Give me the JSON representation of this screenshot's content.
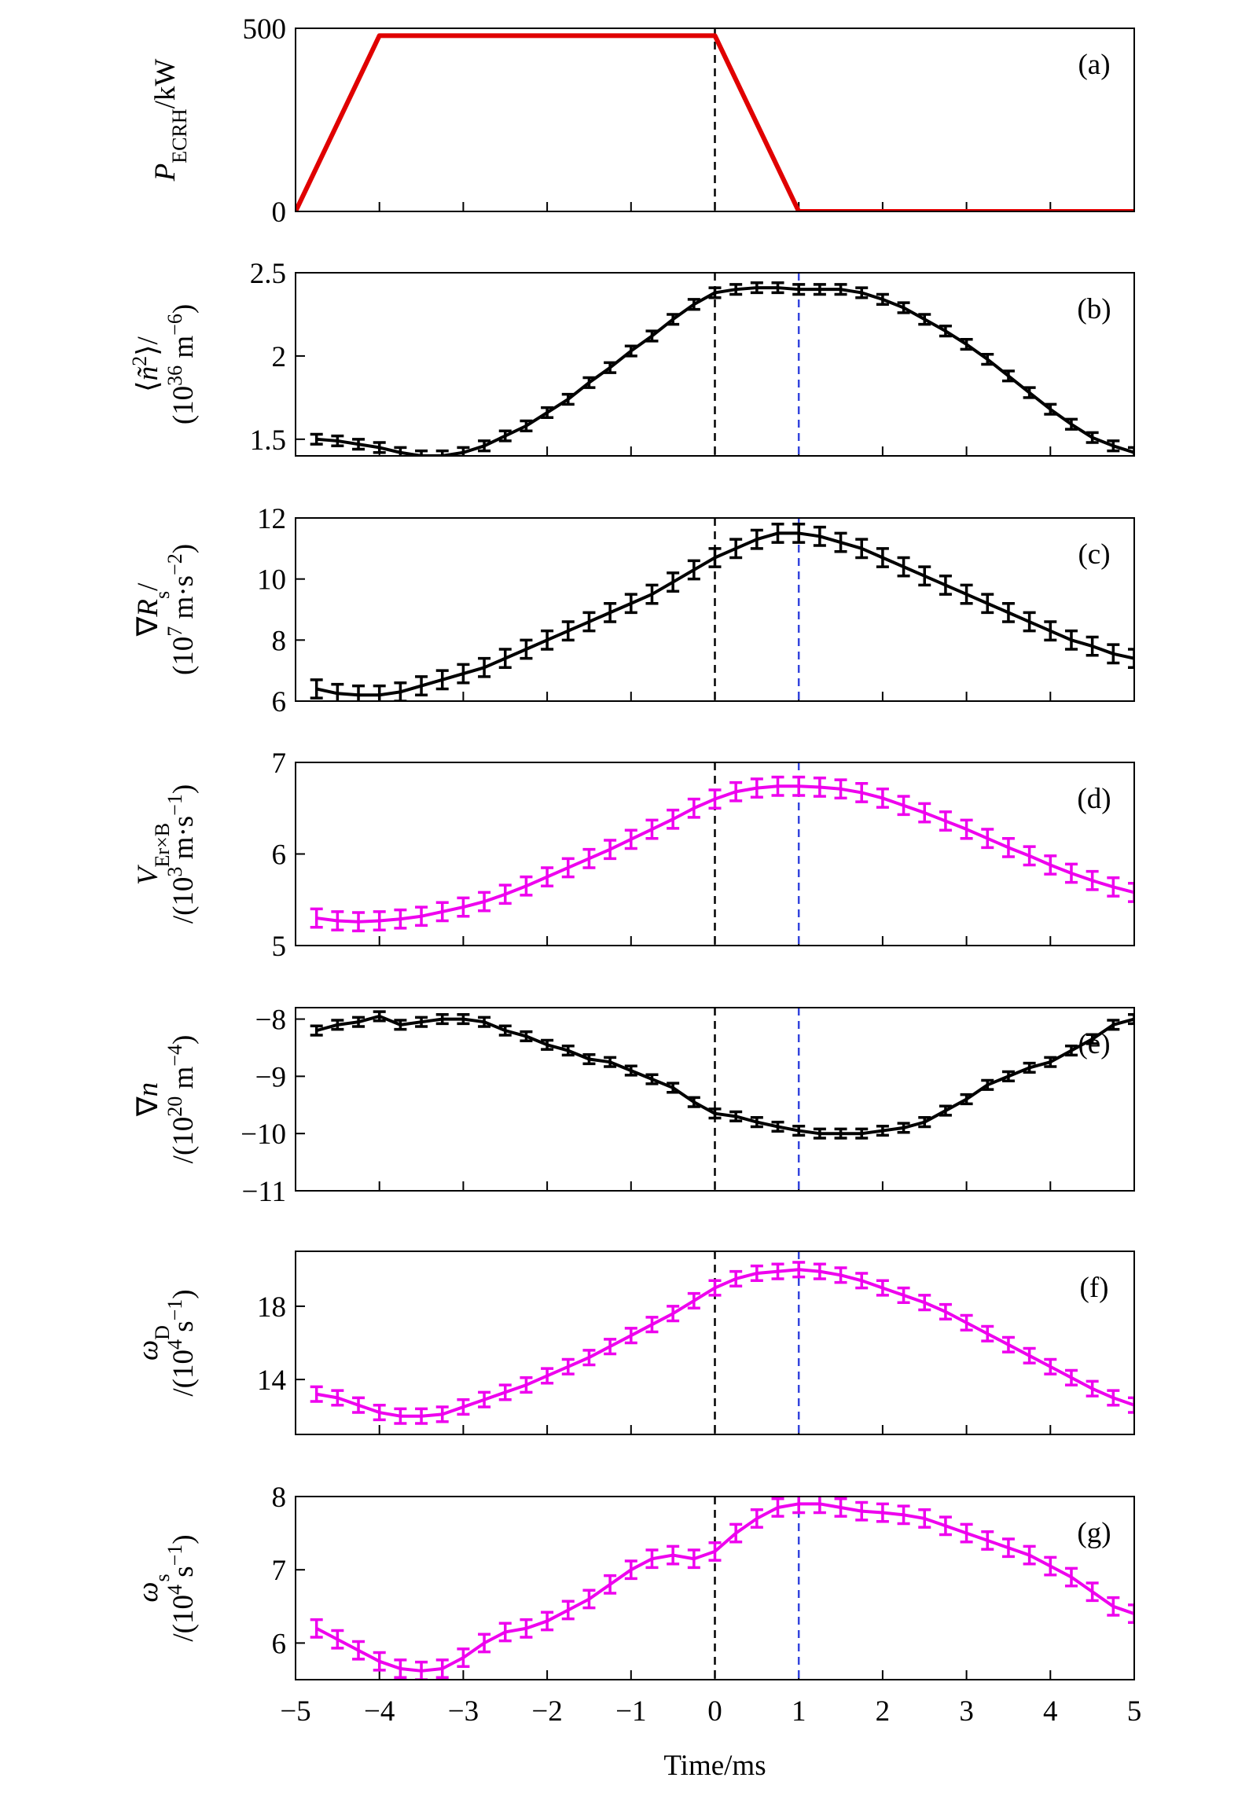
{
  "chart_data": [
    {
      "type": "line",
      "panel_label": "(a)",
      "color": "#e00000",
      "xlim": [
        -5,
        5
      ],
      "ylim": [
        0,
        500
      ],
      "yticks": [
        0,
        500
      ],
      "ylabel": [
        [
          {
            "t": "P",
            "s": "it"
          },
          {
            "t": "ECRH",
            "s": "sub"
          },
          {
            "t": "/kW"
          }
        ]
      ],
      "vlines": [
        {
          "x": 0,
          "color": "#000000"
        }
      ],
      "x": [
        -5,
        -4,
        0,
        1,
        5
      ],
      "values": [
        0,
        480,
        480,
        0,
        0
      ]
    },
    {
      "type": "line",
      "panel_label": "(b)",
      "color": "#000000",
      "xlim": [
        -5,
        5
      ],
      "ylim": [
        1.4,
        2.5
      ],
      "yticks": [
        1.5,
        2.0,
        2.5
      ],
      "ylabel": [
        [
          {
            "t": "⟨"
          },
          {
            "t": "ñ",
            "s": "it"
          },
          {
            "t": "2",
            "s": "sup"
          },
          {
            "t": "⟩/"
          }
        ],
        [
          {
            "t": "(10"
          },
          {
            "t": "36",
            "s": "sup"
          },
          {
            "t": " m"
          },
          {
            "t": "−6",
            "s": "sup"
          },
          {
            "t": ")"
          }
        ]
      ],
      "vlines": [
        {
          "x": 0,
          "color": "#000000"
        },
        {
          "x": 1,
          "color": "#3344dd"
        }
      ],
      "x": [
        -4.75,
        -4.5,
        -4.25,
        -4,
        -3.75,
        -3.5,
        -3.25,
        -3,
        -2.75,
        -2.5,
        -2.25,
        -2,
        -1.75,
        -1.5,
        -1.25,
        -1,
        -0.75,
        -0.5,
        -0.25,
        0,
        0.25,
        0.5,
        0.75,
        1,
        1.25,
        1.5,
        1.75,
        2,
        2.25,
        2.5,
        2.75,
        3,
        3.25,
        3.5,
        3.75,
        4,
        4.25,
        4.5,
        4.75,
        5
      ],
      "values": [
        1.5,
        1.49,
        1.47,
        1.45,
        1.42,
        1.4,
        1.4,
        1.42,
        1.46,
        1.52,
        1.58,
        1.66,
        1.74,
        1.84,
        1.93,
        2.03,
        2.12,
        2.22,
        2.31,
        2.38,
        2.4,
        2.41,
        2.41,
        2.4,
        2.4,
        2.4,
        2.38,
        2.34,
        2.29,
        2.22,
        2.15,
        2.07,
        1.98,
        1.88,
        1.78,
        1.68,
        1.59,
        1.51,
        1.46,
        1.42
      ],
      "error": 0.03
    },
    {
      "type": "line",
      "panel_label": "(c)",
      "color": "#000000",
      "xlim": [
        -5,
        5
      ],
      "ylim": [
        6,
        12
      ],
      "yticks": [
        6,
        8,
        10,
        12
      ],
      "ylabel": [
        [
          {
            "t": "∇"
          },
          {
            "t": "R",
            "s": "it"
          },
          {
            "t": "s",
            "s": "sub"
          },
          {
            "t": "/"
          }
        ],
        [
          {
            "t": "(10"
          },
          {
            "t": "7",
            "s": "sup"
          },
          {
            "t": " m·s"
          },
          {
            "t": "−2",
            "s": "sup"
          },
          {
            "t": ")"
          }
        ]
      ],
      "vlines": [
        {
          "x": 0,
          "color": "#000000"
        },
        {
          "x": 1,
          "color": "#3344dd"
        }
      ],
      "x": [
        -4.75,
        -4.5,
        -4.25,
        -4,
        -3.75,
        -3.5,
        -3.25,
        -3,
        -2.75,
        -2.5,
        -2.25,
        -2,
        -1.75,
        -1.5,
        -1.25,
        -1,
        -0.75,
        -0.5,
        -0.25,
        0,
        0.25,
        0.5,
        0.75,
        1,
        1.25,
        1.5,
        1.75,
        2,
        2.25,
        2.5,
        2.75,
        3,
        3.25,
        3.5,
        3.75,
        4,
        4.25,
        4.5,
        4.75,
        5
      ],
      "values": [
        6.4,
        6.25,
        6.2,
        6.2,
        6.3,
        6.5,
        6.7,
        6.9,
        7.1,
        7.4,
        7.7,
        8.0,
        8.3,
        8.6,
        8.9,
        9.2,
        9.5,
        9.9,
        10.3,
        10.7,
        11.0,
        11.3,
        11.5,
        11.5,
        11.4,
        11.2,
        11.0,
        10.7,
        10.4,
        10.1,
        9.8,
        9.5,
        9.2,
        8.9,
        8.6,
        8.3,
        8.0,
        7.8,
        7.55,
        7.4
      ],
      "error": 0.3
    },
    {
      "type": "line",
      "panel_label": "(d)",
      "color": "#ee00ee",
      "xlim": [
        -5,
        5
      ],
      "ylim": [
        5,
        7
      ],
      "yticks": [
        5,
        6,
        7
      ],
      "ylabel": [
        [
          {
            "t": "V",
            "s": "it"
          },
          {
            "t": "Er×B",
            "s": "sub"
          }
        ],
        [
          {
            "t": "/(10"
          },
          {
            "t": "3",
            "s": "sup"
          },
          {
            "t": " m·s"
          },
          {
            "t": "−1",
            "s": "sup"
          },
          {
            "t": ")"
          }
        ]
      ],
      "vlines": [
        {
          "x": 0,
          "color": "#000000"
        },
        {
          "x": 1,
          "color": "#3344dd"
        }
      ],
      "x": [
        -4.75,
        -4.5,
        -4.25,
        -4,
        -3.75,
        -3.5,
        -3.25,
        -3,
        -2.75,
        -2.5,
        -2.25,
        -2,
        -1.75,
        -1.5,
        -1.25,
        -1,
        -0.75,
        -0.5,
        -0.25,
        0,
        0.25,
        0.5,
        0.75,
        1,
        1.25,
        1.5,
        1.75,
        2,
        2.25,
        2.5,
        2.75,
        3,
        3.25,
        3.5,
        3.75,
        4,
        4.25,
        4.5,
        4.75,
        5
      ],
      "values": [
        5.3,
        5.27,
        5.26,
        5.27,
        5.29,
        5.32,
        5.37,
        5.42,
        5.48,
        5.56,
        5.65,
        5.75,
        5.85,
        5.95,
        6.05,
        6.16,
        6.27,
        6.38,
        6.5,
        6.6,
        6.68,
        6.72,
        6.74,
        6.74,
        6.73,
        6.71,
        6.67,
        6.61,
        6.53,
        6.45,
        6.36,
        6.27,
        6.17,
        6.07,
        5.98,
        5.88,
        5.79,
        5.71,
        5.64,
        5.58
      ],
      "error": 0.1
    },
    {
      "type": "line",
      "panel_label": "(e)",
      "color": "#000000",
      "xlim": [
        -5,
        5
      ],
      "ylim": [
        -11,
        -7.8
      ],
      "yticks": [
        {
          "value": -11,
          "label": "−11"
        },
        {
          "value": -10,
          "label": "−10"
        },
        {
          "value": -9,
          "label": "−9"
        },
        {
          "value": -8,
          "label": "−8"
        }
      ],
      "ylabel": [
        [
          {
            "t": "∇"
          },
          {
            "t": "n",
            "s": "it"
          }
        ],
        [
          {
            "t": "/(10"
          },
          {
            "t": "20",
            "s": "sup"
          },
          {
            "t": " m"
          },
          {
            "t": "−4",
            "s": "sup"
          },
          {
            "t": ")"
          }
        ]
      ],
      "vlines": [
        {
          "x": 0,
          "color": "#000000"
        },
        {
          "x": 1,
          "color": "#3344dd"
        }
      ],
      "x": [
        -4.75,
        -4.5,
        -4.25,
        -4,
        -3.75,
        -3.5,
        -3.25,
        -3,
        -2.75,
        -2.5,
        -2.25,
        -2,
        -1.75,
        -1.5,
        -1.25,
        -1,
        -0.75,
        -0.5,
        -0.25,
        0,
        0.25,
        0.5,
        0.75,
        1,
        1.25,
        1.5,
        1.75,
        2,
        2.25,
        2.5,
        2.75,
        3,
        3.25,
        3.5,
        3.75,
        4,
        4.25,
        4.5,
        4.75,
        5
      ],
      "values": [
        -8.2,
        -8.1,
        -8.05,
        -7.95,
        -8.1,
        -8.05,
        -8.0,
        -8.0,
        -8.05,
        -8.2,
        -8.3,
        -8.45,
        -8.55,
        -8.7,
        -8.75,
        -8.9,
        -9.05,
        -9.2,
        -9.45,
        -9.65,
        -9.7,
        -9.8,
        -9.88,
        -9.95,
        -10.0,
        -10.0,
        -10.0,
        -9.95,
        -9.9,
        -9.8,
        -9.6,
        -9.4,
        -9.15,
        -9.0,
        -8.85,
        -8.75,
        -8.55,
        -8.35,
        -8.1,
        -8.0
      ],
      "error": 0.08
    },
    {
      "type": "line",
      "panel_label": "(f)",
      "color": "#ee00ee",
      "xlim": [
        -5,
        5
      ],
      "ylim": [
        11,
        21
      ],
      "yticks": [
        14,
        18
      ],
      "ylabel": [
        [
          {
            "t": "ω",
            "s": "it"
          },
          {
            "t": "D",
            "s": "sub"
          }
        ],
        [
          {
            "t": "/(10"
          },
          {
            "t": "4",
            "s": "sup"
          },
          {
            "t": " s"
          },
          {
            "t": "−1",
            "s": "sup"
          },
          {
            "t": ")"
          }
        ]
      ],
      "vlines": [
        {
          "x": 0,
          "color": "#000000"
        },
        {
          "x": 1,
          "color": "#3344dd"
        }
      ],
      "x": [
        -4.75,
        -4.5,
        -4.25,
        -4,
        -3.75,
        -3.5,
        -3.25,
        -3,
        -2.75,
        -2.5,
        -2.25,
        -2,
        -1.75,
        -1.5,
        -1.25,
        -1,
        -0.75,
        -0.5,
        -0.25,
        0,
        0.25,
        0.5,
        0.75,
        1,
        1.25,
        1.5,
        1.75,
        2,
        2.25,
        2.5,
        2.75,
        3,
        3.25,
        3.5,
        3.75,
        4,
        4.25,
        4.5,
        4.75,
        5
      ],
      "values": [
        13.2,
        13.0,
        12.6,
        12.2,
        12.0,
        12.0,
        12.1,
        12.5,
        12.9,
        13.3,
        13.7,
        14.2,
        14.7,
        15.2,
        15.8,
        16.4,
        17.0,
        17.6,
        18.3,
        19.0,
        19.5,
        19.8,
        19.9,
        20.0,
        19.9,
        19.7,
        19.4,
        19.0,
        18.6,
        18.2,
        17.7,
        17.1,
        16.5,
        15.9,
        15.3,
        14.7,
        14.1,
        13.5,
        13.0,
        12.6
      ],
      "error": 0.4
    },
    {
      "type": "line",
      "panel_label": "(g)",
      "color": "#ee00ee",
      "xlim": [
        -5,
        5
      ],
      "ylim": [
        5.5,
        8
      ],
      "yticks": [
        6,
        7,
        8
      ],
      "ylabel": [
        [
          {
            "t": "ω",
            "s": "it"
          },
          {
            "t": "s",
            "s": "sub"
          }
        ],
        [
          {
            "t": "/(10"
          },
          {
            "t": "4",
            "s": "sup"
          },
          {
            "t": " s"
          },
          {
            "t": "−1",
            "s": "sup"
          },
          {
            "t": ")"
          }
        ]
      ],
      "vlines": [
        {
          "x": 0,
          "color": "#000000"
        },
        {
          "x": 1,
          "color": "#3344dd"
        }
      ],
      "x": [
        -4.75,
        -4.5,
        -4.25,
        -4,
        -3.75,
        -3.5,
        -3.25,
        -3,
        -2.75,
        -2.5,
        -2.25,
        -2,
        -1.75,
        -1.5,
        -1.25,
        -1,
        -0.75,
        -0.5,
        -0.25,
        0,
        0.25,
        0.5,
        0.75,
        1,
        1.25,
        1.5,
        1.75,
        2,
        2.25,
        2.5,
        2.75,
        3,
        3.25,
        3.5,
        3.75,
        4,
        4.25,
        4.5,
        4.75,
        5
      ],
      "values": [
        6.2,
        6.05,
        5.9,
        5.75,
        5.65,
        5.62,
        5.65,
        5.8,
        6.0,
        6.15,
        6.2,
        6.3,
        6.45,
        6.6,
        6.8,
        7.0,
        7.15,
        7.2,
        7.15,
        7.25,
        7.5,
        7.7,
        7.85,
        7.9,
        7.9,
        7.85,
        7.8,
        7.78,
        7.75,
        7.7,
        7.6,
        7.5,
        7.4,
        7.3,
        7.2,
        7.05,
        6.9,
        6.7,
        6.5,
        6.4
      ],
      "error": 0.12,
      "xlabel": "Time/ms",
      "xticks": [
        {
          "value": -5,
          "label": "−5"
        },
        {
          "value": -4,
          "label": "−4"
        },
        {
          "value": -3,
          "label": "−3"
        },
        {
          "value": -2,
          "label": "−2"
        },
        {
          "value": -1,
          "label": "−1"
        },
        0,
        1,
        2,
        3,
        4,
        5
      ]
    }
  ]
}
